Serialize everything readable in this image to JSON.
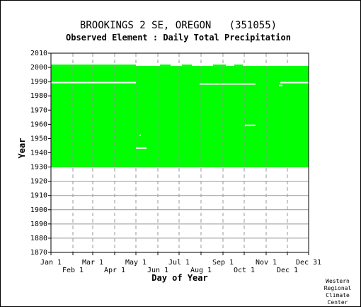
{
  "chart_data": {
    "type": "heatmap",
    "title": "BROOKINGS 2 SE, OREGON   (351055)",
    "subtitle": "Observed Element : Daily Total Precipitation",
    "xlabel": "Day of Year",
    "ylabel": "Year",
    "xlim": [
      1,
      365
    ],
    "ylim": [
      1870,
      2010
    ],
    "y_ticks": [
      1870,
      1880,
      1890,
      1900,
      1910,
      1920,
      1930,
      1940,
      1950,
      1960,
      1970,
      1980,
      1990,
      2000,
      2010
    ],
    "x_ticks": [
      {
        "label": "Jan 1",
        "day": 1,
        "row": 1
      },
      {
        "label": "Feb 1",
        "day": 32,
        "row": 2
      },
      {
        "label": "Mar 1",
        "day": 60,
        "row": 1
      },
      {
        "label": "Apr 1",
        "day": 91,
        "row": 2
      },
      {
        "label": "May 1",
        "day": 121,
        "row": 1
      },
      {
        "label": "Jun 1",
        "day": 152,
        "row": 2
      },
      {
        "label": "Jul 1",
        "day": 182,
        "row": 1
      },
      {
        "label": "Aug 1",
        "day": 213,
        "row": 2
      },
      {
        "label": "Sep 1",
        "day": 244,
        "row": 1
      },
      {
        "label": "Oct 1",
        "day": 274,
        "row": 2
      },
      {
        "label": "Nov 1",
        "day": 305,
        "row": 1
      },
      {
        "label": "Dec 1",
        "day": 335,
        "row": 2
      },
      {
        "label": "Dec 31",
        "day": 365,
        "row": 1
      }
    ],
    "grid": true,
    "data_color": "#00ff00",
    "coverage": {
      "year_start": 1930,
      "year_end": 2001,
      "day_start": 1,
      "day_end": 365
    },
    "partial_year_2001": [
      {
        "day_start": 1,
        "day_end": 121
      },
      {
        "day_start": 155,
        "day_end": 170
      },
      {
        "day_start": 186,
        "day_end": 200
      },
      {
        "day_start": 230,
        "day_end": 248
      },
      {
        "day_start": 260,
        "day_end": 272
      }
    ],
    "gaps": [
      {
        "year": 1989,
        "day_start": 1,
        "day_end": 121
      },
      {
        "year": 1988,
        "day_start": 211,
        "day_end": 290
      },
      {
        "year": 1989,
        "day_start": 325,
        "day_end": 365
      },
      {
        "year": 1987,
        "day_start": 323,
        "day_end": 328
      },
      {
        "year": 1959,
        "day_start": 275,
        "day_end": 290
      },
      {
        "year": 1952,
        "day_start": 126,
        "day_end": 128
      },
      {
        "year": 1943,
        "day_start": 121,
        "day_end": 136
      }
    ]
  },
  "credit": [
    "Western",
    "Regional",
    "Climate",
    "Center"
  ]
}
